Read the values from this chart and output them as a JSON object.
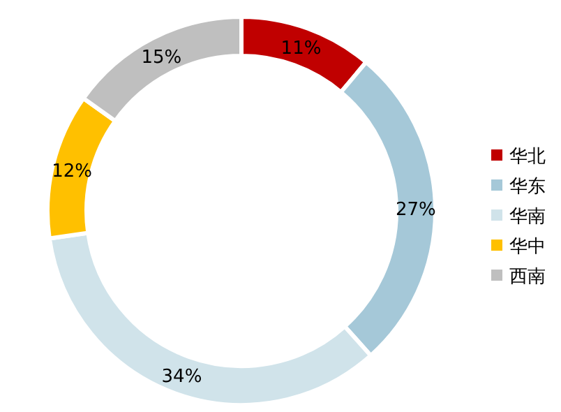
{
  "chart_data": {
    "type": "donut",
    "categories": [
      "华北",
      "华东",
      "华南",
      "华中",
      "西南"
    ],
    "values": [
      11,
      27,
      34,
      12,
      15
    ],
    "colors": [
      "#c00000",
      "#a5c8d8",
      "#d0e3ea",
      "#ffc000",
      "#bfbfbf"
    ],
    "value_labels": [
      "11%",
      "27%",
      "34%",
      "12%",
      "15%"
    ],
    "legend": "right"
  }
}
